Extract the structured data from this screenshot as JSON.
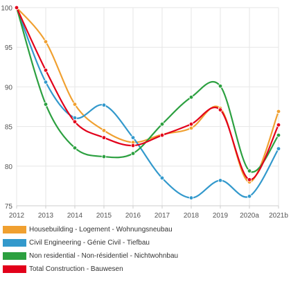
{
  "chart_data": {
    "type": "line",
    "categories": [
      "2012",
      "2013",
      "2014",
      "2015",
      "2016",
      "2017",
      "2018",
      "2019",
      "2020a",
      "2021b"
    ],
    "y_ticks": [
      "75",
      "80",
      "85",
      "90",
      "95",
      "100"
    ],
    "ylim": [
      75,
      100
    ],
    "grid": true,
    "legend_position": "bottom",
    "title": "",
    "xlabel": "",
    "ylabel": "",
    "series": [
      {
        "name": "Housebuilding - Logement - Wohnungsneubau",
        "color": "#f0a030",
        "values": [
          100,
          95.7,
          87.8,
          84.5,
          83.0,
          84.0,
          84.8,
          87.3,
          78.0,
          86.9
        ]
      },
      {
        "name": "Civil Engineering - Génie Civil - Tiefbau",
        "color": "#3399cc",
        "values": [
          100,
          90.6,
          86.1,
          87.7,
          83.6,
          78.5,
          76.0,
          78.2,
          76.2,
          82.2
        ]
      },
      {
        "name": "Non residential - Non-résidentiel - Nichtwohnbau",
        "color": "#2ca040",
        "values": [
          100,
          87.8,
          82.3,
          81.2,
          81.6,
          85.3,
          88.7,
          90.1,
          79.4,
          83.9
        ]
      },
      {
        "name": "Total Construction - Bauwesen",
        "color": "#e2001a",
        "values": [
          100,
          92.1,
          85.6,
          83.6,
          82.6,
          83.9,
          85.3,
          87.1,
          78.3,
          85.2
        ]
      }
    ]
  }
}
